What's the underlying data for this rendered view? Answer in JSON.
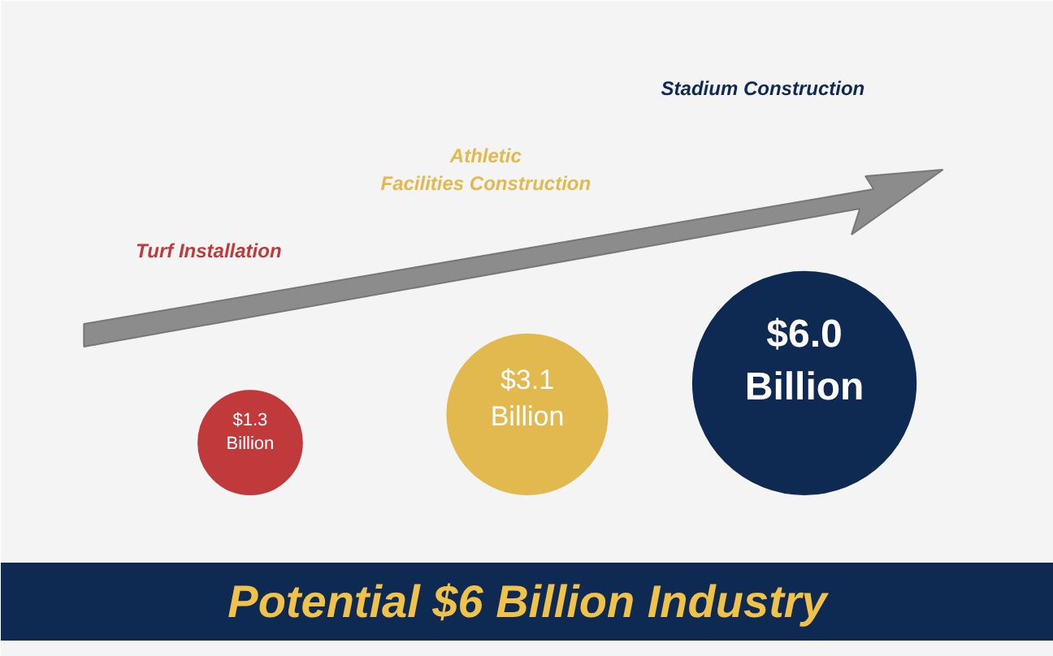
{
  "chart_data": {
    "type": "other",
    "title": "Potential $6 Billion Industry",
    "categories": [
      "Turf Installation",
      "Athletic Facilities Construction",
      "Stadium Construction"
    ],
    "values": [
      1.3,
      3.1,
      6.0
    ],
    "value_labels": [
      "$1.3 Billion",
      "$3.1 Billion",
      "$6.0 Billion"
    ],
    "colors": [
      "#c0393b",
      "#e2b94f",
      "#0f2a52"
    ]
  }
}
